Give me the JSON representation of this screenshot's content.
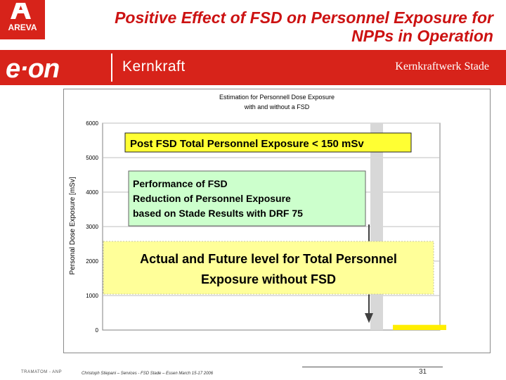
{
  "header": {
    "title_line1": "Positive Effect of FSD on Personnel Exposure for",
    "title_line2": "NPPs in Operation",
    "areva_logo_text": "AREVA",
    "eon_logo_text": "e·on",
    "eon_sub": "Kernkraft",
    "plant_name": "Kernkraftwerk Stade"
  },
  "footer": {
    "left": "TRAMATOM - ANP",
    "middle": "Christoph Stiepani – Services - FSD Stade – Essen March 15-17 2006",
    "page": "31"
  },
  "annotations": {
    "post_fsd": "Post FSD Total Personnel Exposure < 150 mSv",
    "performance_line1": "Performance of FSD",
    "performance_line2": "Reduction of Personnel Exposure",
    "performance_line3": "based on Stade Results with DRF 75",
    "actual_line1": "Actual and Future level for Total Personnel",
    "actual_line2": "Exposure without FSD"
  },
  "chart_data": {
    "type": "bar",
    "title_line1": "Estimation for Personnell Dose Exposure",
    "title_line2": "with and without a FSD",
    "ylabel": "Personal Dose Exposure [mSv]",
    "xlabel": "",
    "ylim": [
      0,
      6000
    ],
    "yticks": [
      0,
      1000,
      2000,
      3000,
      4000,
      5000,
      6000
    ],
    "grid": true,
    "series": [
      {
        "values": [
          6000,
          150
        ]
      }
    ],
    "colors": {
      "without_fsd_bar": "#d8d8d8",
      "with_fsd_bar": "#ffee00",
      "post_fsd_box": "#ffff33",
      "performance_box": "#ccffcc",
      "actual_box": "#ffff99",
      "arrow": "#404040"
    }
  }
}
